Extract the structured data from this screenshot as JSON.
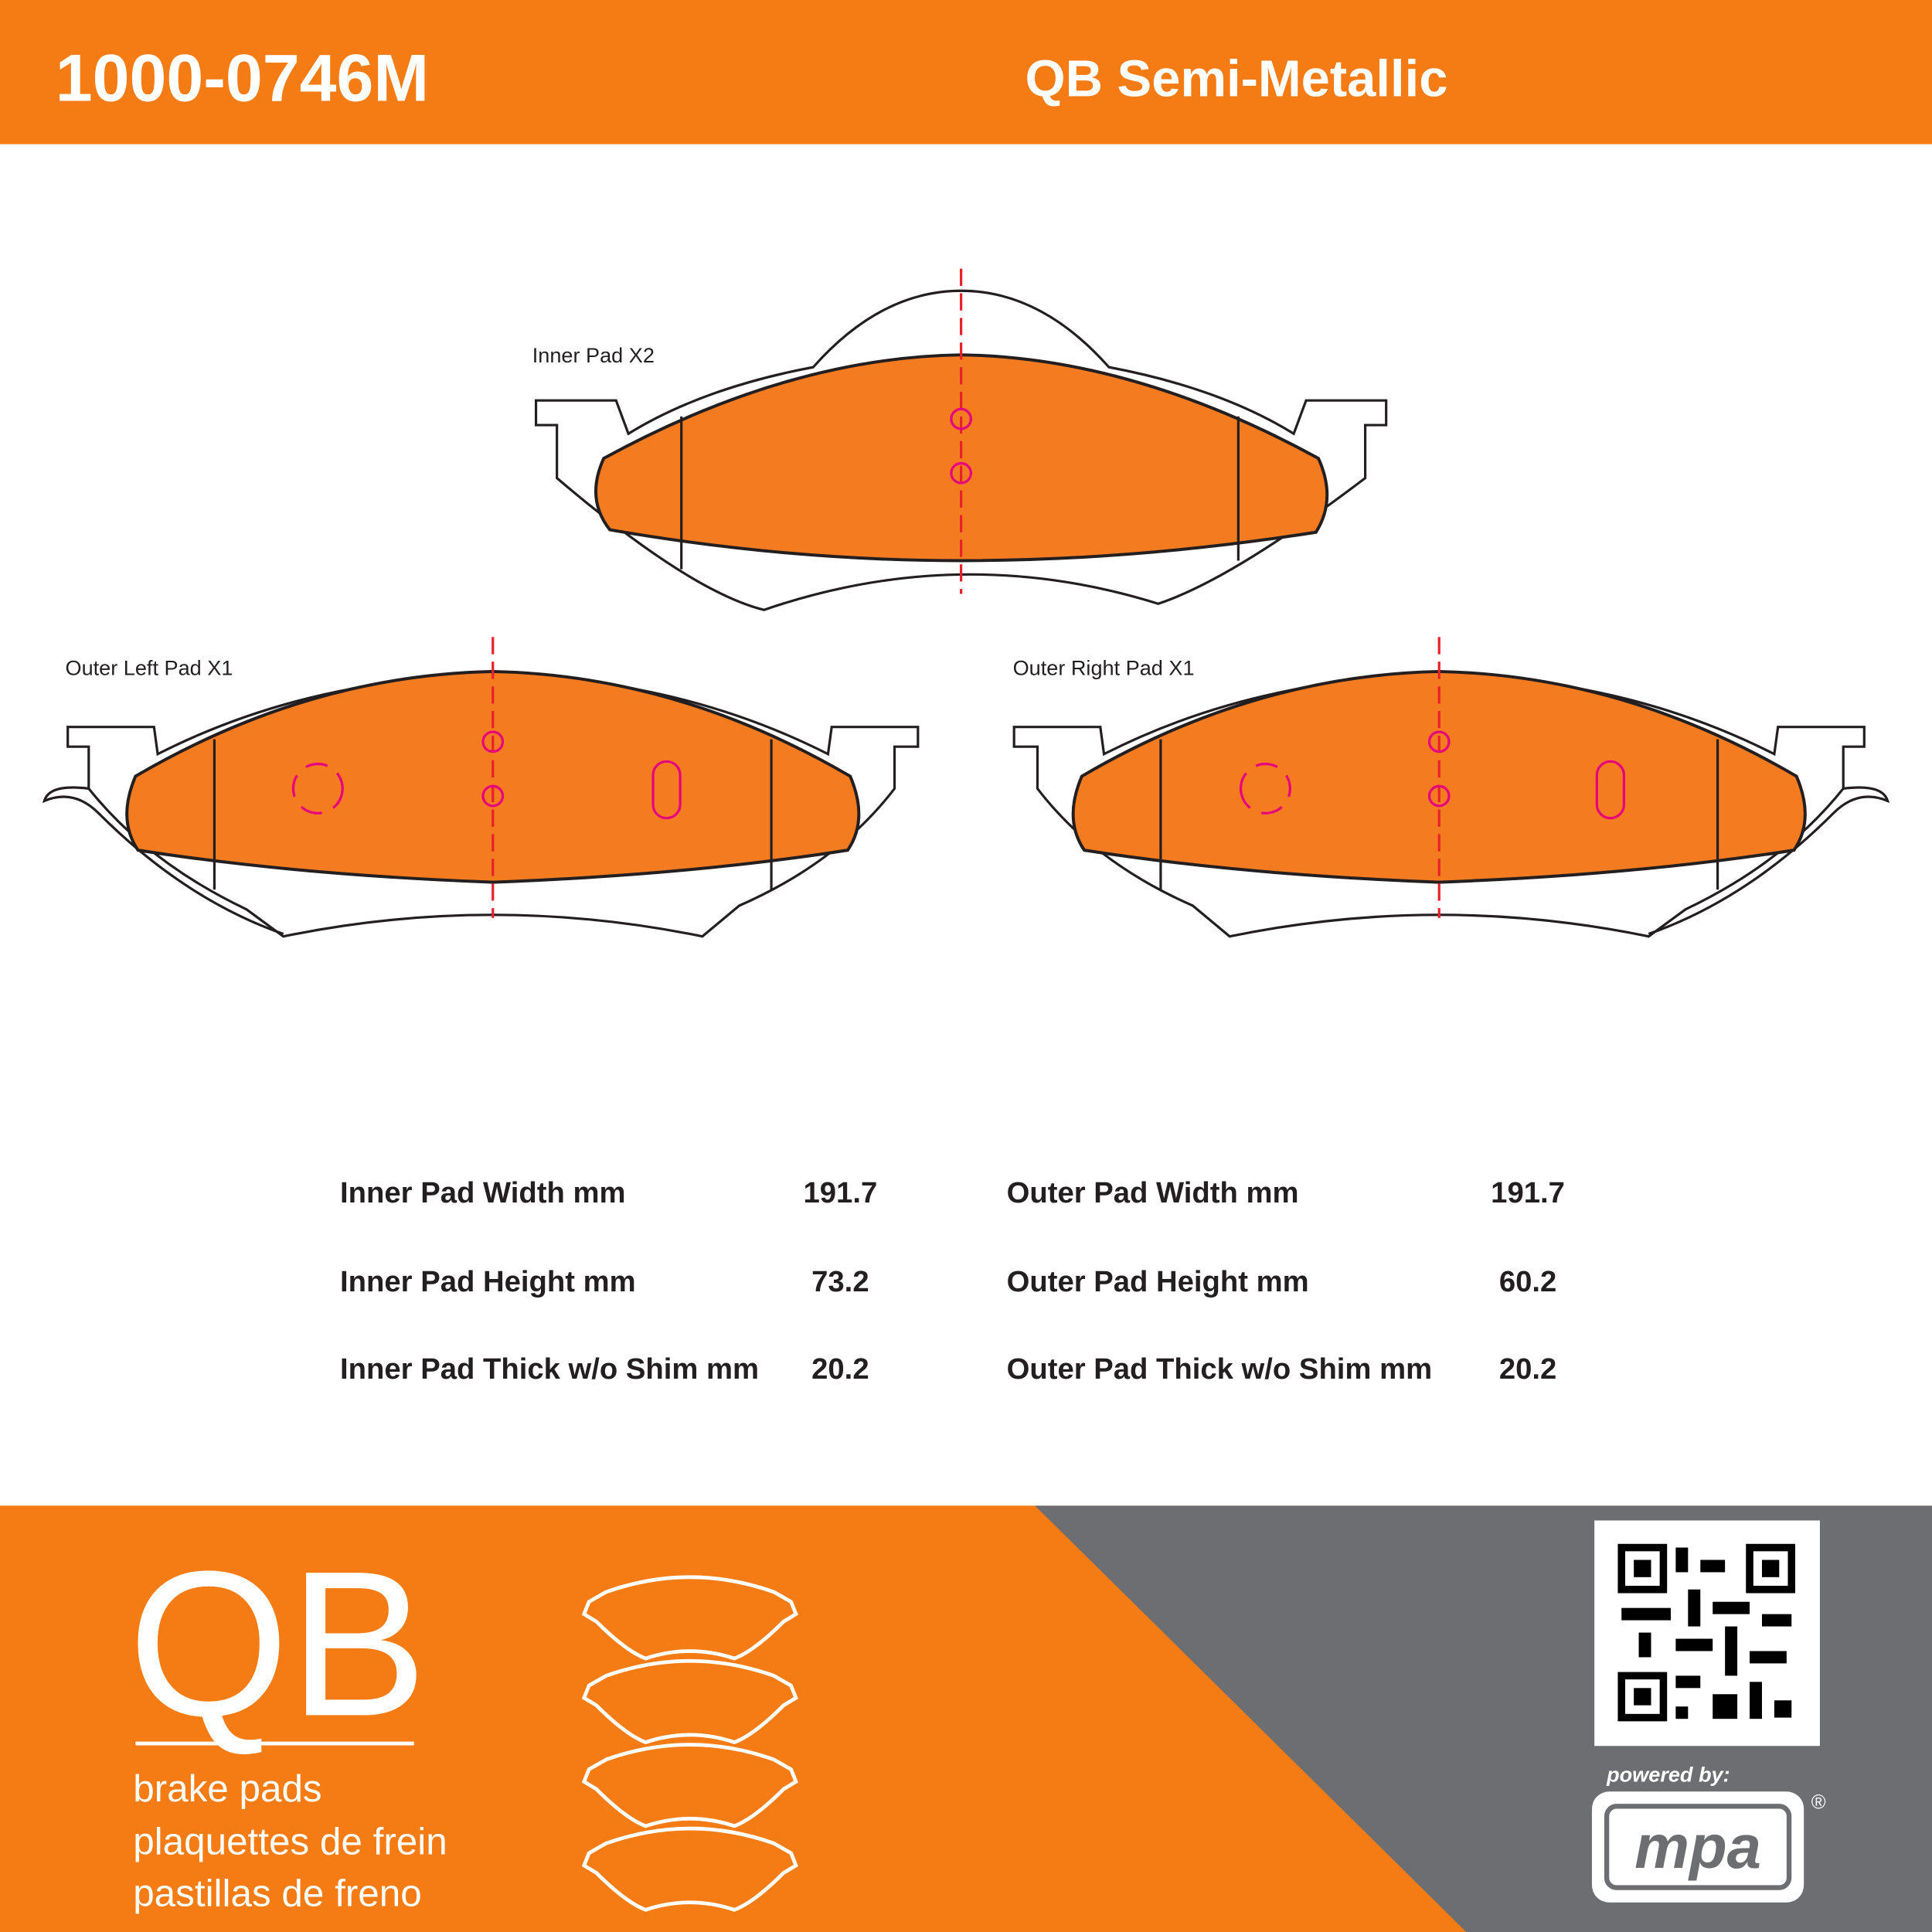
{
  "header": {
    "part_number": "1000-0746M",
    "line": "QB Semi-Metallic"
  },
  "diagram": {
    "labels": [
      "Inner Pad X2",
      "Outer Left Pad X1",
      "Outer Right Pad X1"
    ]
  },
  "specs": {
    "rows": [
      {
        "label": "Inner Pad Width mm",
        "value": 191.7
      },
      {
        "label": "Inner Pad Height mm",
        "value": 73.2
      },
      {
        "label": "Inner Pad Thick w/o Shim mm",
        "value": 20.2
      },
      {
        "label": "Outer Pad Width mm",
        "value": 191.7
      },
      {
        "label": "Outer Pad Height mm",
        "value": 60.2
      },
      {
        "label": "Outer Pad Thick w/o Shim mm",
        "value": 20.2
      }
    ]
  },
  "footer": {
    "brand": "QB",
    "taglines": [
      "brake pads",
      "plaquettes de frein",
      "pastillas de freno"
    ],
    "powered_by": "powered by:",
    "partner": "mpa",
    "registered": "®"
  }
}
